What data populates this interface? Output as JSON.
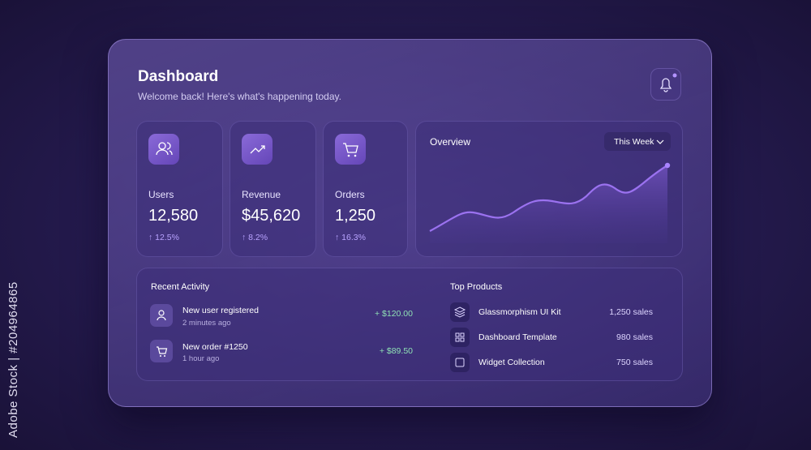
{
  "header": {
    "title": "Dashboard",
    "subtitle": "Welcome back! Here's what's happening today."
  },
  "stats": [
    {
      "label": "Users",
      "value": "12,580",
      "change": "↑ 12.5%"
    },
    {
      "label": "Revenue",
      "value": "$45,620",
      "change": "↑ 8.2%"
    },
    {
      "label": "Orders",
      "value": "1,250",
      "change": "↑ 16.3%"
    }
  ],
  "overview": {
    "title": "Overview",
    "period": "This Week"
  },
  "recent_activity": {
    "title": "Recent Activity",
    "items": [
      {
        "title": "New user registered",
        "time": "2 minutes ago",
        "amount": "+ $120.00"
      },
      {
        "title": "New order #1250",
        "time": "1 hour ago",
        "amount": "+ $89.50"
      }
    ]
  },
  "top_products": {
    "title": "Top Products",
    "items": [
      {
        "name": "Glassmorphism UI Kit",
        "sales": "1,250 sales"
      },
      {
        "name": "Dashboard Template",
        "sales": "980 sales"
      },
      {
        "name": "Widget Collection",
        "sales": "750 sales"
      }
    ]
  },
  "watermark": "Adobe Stock | #204964865"
}
